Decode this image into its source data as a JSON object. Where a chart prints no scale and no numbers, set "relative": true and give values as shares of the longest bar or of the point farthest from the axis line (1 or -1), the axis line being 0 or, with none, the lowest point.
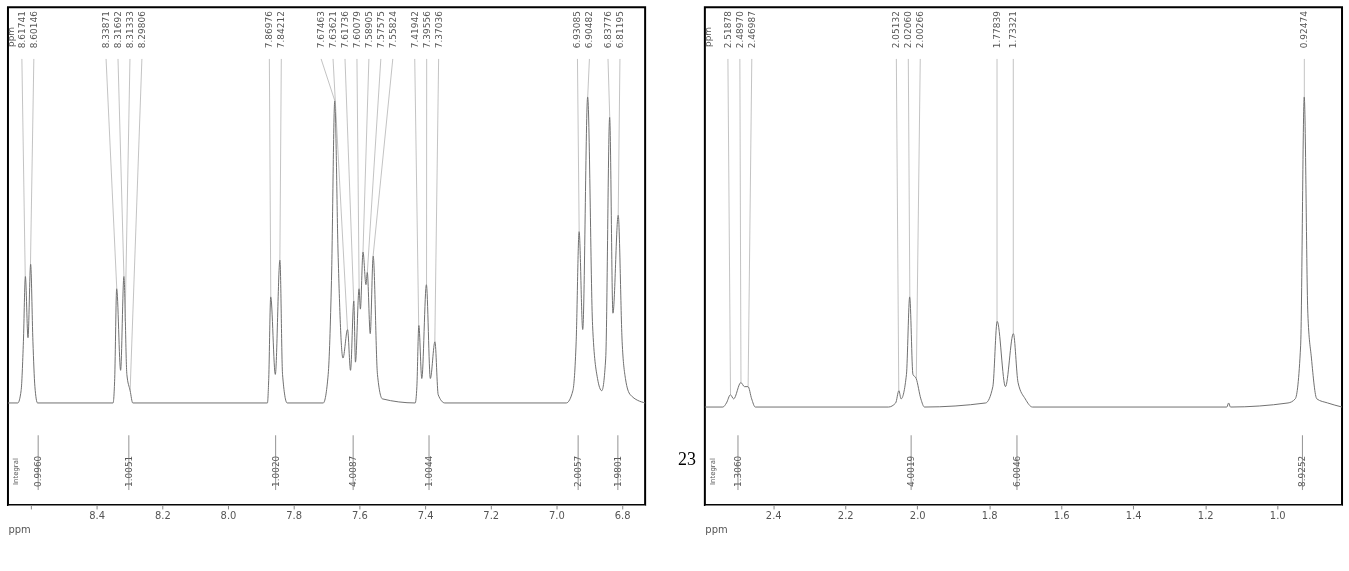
{
  "chart_data": [
    {
      "type": "line",
      "relative": true,
      "xlabel": "ppm",
      "color": "#707070",
      "grid": false,
      "xlim": [
        8.67,
        6.73
      ],
      "xticks": [
        {
          "value": 8.6,
          "label": null
        },
        8.4,
        8.2,
        {
          "value": 8.0,
          "label": "8.0"
        },
        7.8,
        7.6,
        7.4,
        7.2,
        {
          "value": 7.0,
          "label": "7.0"
        },
        6.8
      ],
      "x": [
        8.67,
        8.64,
        8.63,
        8.623,
        8.617,
        8.609,
        8.601,
        8.594,
        8.588,
        8.58,
        8.35,
        8.345,
        8.339,
        8.327,
        8.317,
        8.308,
        8.298,
        8.29,
        7.88,
        7.876,
        7.87,
        7.856,
        7.842,
        7.834,
        7.82,
        7.71,
        7.695,
        7.685,
        7.675,
        7.665,
        7.65,
        7.636,
        7.627,
        7.617,
        7.612,
        7.601,
        7.597,
        7.589,
        7.58,
        7.576,
        7.567,
        7.558,
        7.545,
        7.53,
        7.43,
        7.425,
        7.419,
        7.41,
        7.396,
        7.384,
        7.37,
        7.36,
        7.34,
        6.97,
        6.95,
        6.94,
        6.931,
        6.92,
        6.905,
        6.89,
        6.875,
        6.862,
        6.85,
        6.838,
        6.828,
        6.812,
        6.8,
        6.79,
        6.775,
        6.73
      ],
      "values": [
        0.25,
        0.25,
        0.28,
        0.4,
        0.56,
        0.41,
        0.59,
        0.4,
        0.29,
        0.25,
        0.25,
        0.31,
        0.53,
        0.33,
        0.56,
        0.32,
        0.28,
        0.25,
        0.25,
        0.31,
        0.51,
        0.32,
        0.6,
        0.32,
        0.25,
        0.25,
        0.32,
        0.55,
        0.99,
        0.62,
        0.36,
        0.43,
        0.33,
        0.5,
        0.35,
        0.53,
        0.48,
        0.62,
        0.54,
        0.57,
        0.42,
        0.61,
        0.32,
        0.26,
        0.25,
        0.29,
        0.44,
        0.31,
        0.54,
        0.31,
        0.4,
        0.27,
        0.25,
        0.25,
        0.28,
        0.4,
        0.67,
        0.43,
        1.0,
        0.44,
        0.31,
        0.28,
        0.36,
        0.95,
        0.47,
        0.71,
        0.4,
        0.31,
        0.27,
        0.25
      ],
      "annotations": [
        "ppm",
        {
          "text": "8.61741",
          "x": 8.61741,
          "y": 0.56
        },
        {
          "text": "8.60146",
          "x": 8.60146,
          "y": 0.59
        },
        {
          "text": "8.33871",
          "x": 8.33871,
          "y": 0.53
        },
        {
          "text": "8.31692",
          "x": 8.31692,
          "y": 0.56
        },
        {
          "text": "8.31333",
          "x": 8.31333,
          "y": 0.45
        },
        {
          "text": "8.29806",
          "x": 8.29806,
          "y": 0.28
        },
        {
          "text": "7.86976",
          "x": 7.86976,
          "y": 0.51
        },
        {
          "text": "7.84212",
          "x": 7.84212,
          "y": 0.6
        },
        {
          "text": "7.67463",
          "x": 7.67463,
          "y": 0.99
        },
        {
          "text": "7.63621",
          "x": 7.63621,
          "y": 0.43
        },
        {
          "text": "7.61736",
          "x": 7.61736,
          "y": 0.5
        },
        {
          "text": "7.60079",
          "x": 7.60079,
          "y": 0.53
        },
        {
          "text": "7.58905",
          "x": 7.58905,
          "y": 0.62
        },
        {
          "text": "7.57575",
          "x": 7.57575,
          "y": 0.57
        },
        {
          "text": "7.55824",
          "x": 7.55824,
          "y": 0.61
        },
        {
          "text": "7.41942",
          "x": 7.41942,
          "y": 0.44
        },
        {
          "text": "7.39556",
          "x": 7.39556,
          "y": 0.54
        },
        {
          "text": "7.37036",
          "x": 7.37036,
          "y": 0.4
        },
        {
          "text": "6.93085",
          "x": 6.93085,
          "y": 0.67
        },
        {
          "text": "6.90482",
          "x": 6.90482,
          "y": 1.0
        },
        {
          "text": "6.83776",
          "x": 6.83776,
          "y": 0.95
        },
        {
          "text": "6.81195",
          "x": 6.81195,
          "y": 0.71
        },
        "Integral",
        {
          "text": "0.9960",
          "x": 8.578
        },
        {
          "text": "1.0051",
          "x": 8.302
        },
        {
          "text": "1.0020",
          "x": 7.855
        },
        {
          "text": "4.0087",
          "x": 7.619
        },
        {
          "text": "1.0044",
          "x": 7.388
        },
        {
          "text": "2.0057",
          "x": 6.934
        },
        {
          "text": "1.9801",
          "x": 6.813
        }
      ]
    },
    {
      "type": "line",
      "relative": true,
      "xlabel": "ppm",
      "color": "#707070",
      "grid": false,
      "xlim": [
        2.59,
        0.82
      ],
      "xticks": [
        2.4,
        2.2,
        {
          "value": 2.0,
          "label": "2.0"
        },
        1.8,
        1.6,
        1.4,
        1.2,
        {
          "value": 1.0,
          "label": "1.0"
        }
      ],
      "x": [
        2.59,
        2.54,
        2.53,
        2.519,
        2.51,
        2.49,
        2.48,
        2.47,
        2.46,
        2.45,
        2.08,
        2.06,
        2.051,
        2.045,
        2.03,
        2.021,
        2.012,
        2.003,
        1.99,
        1.98,
        1.81,
        1.79,
        1.778,
        1.755,
        1.733,
        1.72,
        1.7,
        1.68,
        1.14,
        1.135,
        1.13,
        0.97,
        0.95,
        0.935,
        0.925,
        0.915,
        0.905,
        0.89,
        0.86,
        0.82
      ],
      "values": [
        0.24,
        0.24,
        0.25,
        0.27,
        0.26,
        0.3,
        0.29,
        0.29,
        0.26,
        0.24,
        0.24,
        0.25,
        0.28,
        0.26,
        0.32,
        0.51,
        0.32,
        0.31,
        0.26,
        0.24,
        0.25,
        0.29,
        0.45,
        0.29,
        0.42,
        0.3,
        0.26,
        0.24,
        0.24,
        0.25,
        0.24,
        0.25,
        0.26,
        0.39,
        1.0,
        0.47,
        0.36,
        0.26,
        0.25,
        0.24
      ],
      "annotations": [
        "ppm",
        {
          "text": "2.51878",
          "x": 2.51878,
          "y": 0.27
        },
        {
          "text": "2.48970",
          "x": 2.4897,
          "y": 0.3
        },
        {
          "text": "2.46987",
          "x": 2.46987,
          "y": 0.29
        },
        {
          "text": "2.05132",
          "x": 2.05132,
          "y": 0.28
        },
        {
          "text": "2.02060",
          "x": 2.0206,
          "y": 0.51
        },
        {
          "text": "2.00266",
          "x": 2.00266,
          "y": 0.31
        },
        {
          "text": "1.77839",
          "x": 1.77839,
          "y": 0.45
        },
        {
          "text": "1.73321",
          "x": 1.73321,
          "y": 0.42
        },
        {
          "text": "0.92474",
          "x": 0.92474,
          "y": 1.0
        },
        "Integral",
        {
          "text": "1.3060",
          "x": 2.498
        },
        {
          "text": "4.0019",
          "x": 2.017
        },
        {
          "text": "6.0046",
          "x": 1.723
        },
        {
          "text": "8.9252",
          "x": 0.93
        },
        "23"
      ]
    }
  ]
}
